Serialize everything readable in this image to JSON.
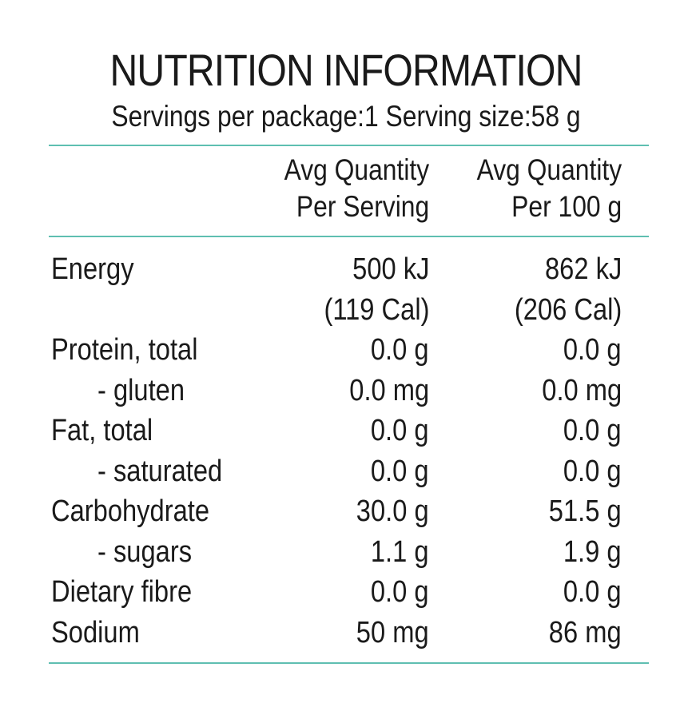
{
  "panel": {
    "title": "NUTRITION INFORMATION",
    "servings_line": "Servings per package:1 Serving size:58 g"
  },
  "columns": {
    "per_serving": [
      "Avg Quantity",
      "Per Serving"
    ],
    "per_100g": [
      "Avg Quantity",
      "Per 100 g"
    ]
  },
  "rows": [
    {
      "label": "Energy",
      "indent": false,
      "per_serving": [
        "500 kJ",
        "(119 Cal)"
      ],
      "per_100g": [
        "862 kJ",
        "(206 Cal)"
      ]
    },
    {
      "label": "Protein, total",
      "indent": false,
      "per_serving": [
        "0.0 g"
      ],
      "per_100g": [
        "0.0 g"
      ]
    },
    {
      "label": "- gluten",
      "indent": true,
      "per_serving": [
        "0.0 mg"
      ],
      "per_100g": [
        "0.0 mg"
      ]
    },
    {
      "label": "Fat, total",
      "indent": false,
      "per_serving": [
        "0.0 g"
      ],
      "per_100g": [
        "0.0 g"
      ]
    },
    {
      "label": "- saturated",
      "indent": true,
      "per_serving": [
        "0.0 g"
      ],
      "per_100g": [
        "0.0 g"
      ]
    },
    {
      "label": "Carbohydrate",
      "indent": false,
      "per_serving": [
        "30.0 g"
      ],
      "per_100g": [
        "51.5 g"
      ]
    },
    {
      "label": "- sugars",
      "indent": true,
      "per_serving": [
        "1.1 g"
      ],
      "per_100g": [
        "1.9 g"
      ]
    },
    {
      "label": "Dietary fibre",
      "indent": false,
      "per_serving": [
        "0.0 g"
      ],
      "per_100g": [
        "0.0 g"
      ]
    },
    {
      "label": "Sodium",
      "indent": false,
      "per_serving": [
        "50 mg"
      ],
      "per_100g": [
        "86 mg"
      ]
    }
  ],
  "colors": {
    "rule": "#5fbfb1",
    "text": "#1a1a1a",
    "background": "#ffffff"
  }
}
